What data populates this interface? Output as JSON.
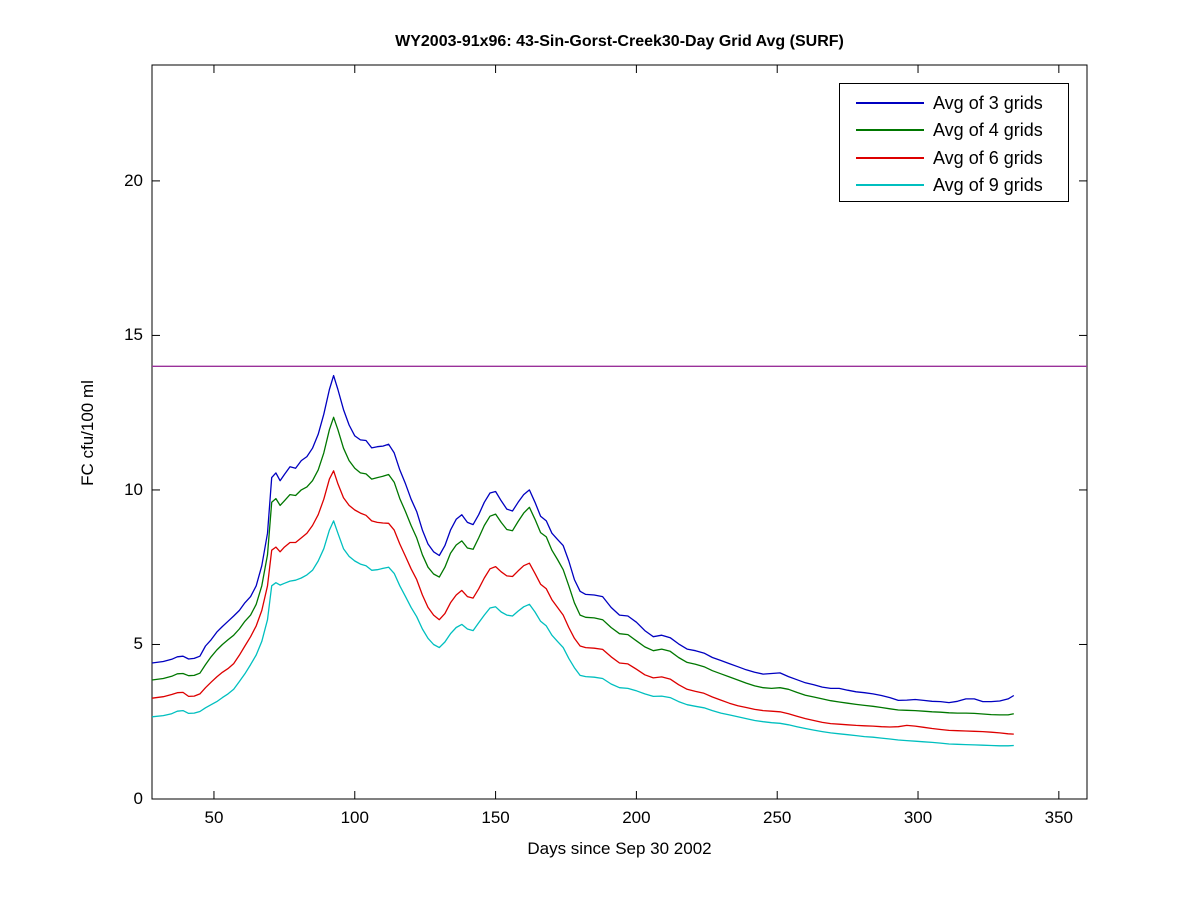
{
  "figure": {
    "title": "WY2003-91x96: 43-Sin-Gorst-Creek30-Day Grid Avg (SURF)",
    "xlabel": "Days since Sep 30 2002",
    "ylabel": "FC cfu/100 ml"
  },
  "chart_data": {
    "type": "line",
    "title": "WY2003-91x96: 43-Sin-Gorst-Creek30-Day Grid Avg (SURF)",
    "xlabel": "Days since Sep 30 2002",
    "ylabel": "FC cfu/100 ml",
    "xlim": [
      28,
      360
    ],
    "ylim": [
      0,
      23.75
    ],
    "xticks": [
      50,
      100,
      150,
      200,
      250,
      300,
      350
    ],
    "yticks": [
      0,
      5,
      10,
      15,
      20
    ],
    "grid": false,
    "legend_position": "top-right",
    "frame_color": "#000000",
    "reference_line": {
      "y": 14,
      "color": "#9A309A"
    },
    "x": [
      28,
      32,
      35,
      37,
      39,
      41,
      43,
      45,
      47,
      49,
      51,
      53,
      55,
      57,
      59,
      61,
      63,
      65,
      67,
      69,
      70.5,
      72,
      73.5,
      75,
      77,
      79,
      81,
      83,
      85,
      87,
      89,
      91,
      92.5,
      94,
      96,
      98,
      100,
      102,
      104,
      106,
      108,
      110,
      112,
      114,
      116,
      118,
      120,
      122,
      124,
      126,
      128,
      130,
      132,
      134,
      136,
      138,
      140,
      142,
      144,
      146,
      148,
      150,
      152,
      154,
      156,
      158,
      160,
      162,
      164,
      166,
      168,
      170,
      172,
      174,
      176,
      178,
      180,
      182,
      185,
      188,
      191,
      194,
      197,
      200,
      203,
      206,
      209,
      212,
      215,
      218,
      221,
      224,
      227,
      230,
      233,
      236,
      239,
      242,
      245,
      248,
      251,
      254,
      257,
      260,
      263,
      266,
      269,
      272,
      275,
      278,
      281,
      284,
      287,
      290,
      293,
      296,
      299,
      302,
      305,
      308,
      311,
      314,
      317,
      320,
      323,
      326,
      329,
      332,
      334
    ],
    "series": [
      {
        "name": "Avg of 3 grids",
        "color": "#0000C0",
        "values": [
          4.4,
          4.45,
          4.52,
          4.6,
          4.62,
          4.53,
          4.55,
          4.62,
          4.95,
          5.15,
          5.4,
          5.58,
          5.75,
          5.92,
          6.1,
          6.35,
          6.55,
          6.9,
          7.55,
          8.6,
          10.4,
          10.55,
          10.3,
          10.5,
          10.75,
          10.7,
          10.95,
          11.08,
          11.35,
          11.8,
          12.45,
          13.25,
          13.7,
          13.25,
          12.6,
          12.1,
          11.75,
          11.62,
          11.6,
          11.36,
          11.4,
          11.42,
          11.48,
          11.2,
          10.65,
          10.2,
          9.7,
          9.3,
          8.7,
          8.25,
          8.0,
          7.88,
          8.2,
          8.7,
          9.05,
          9.2,
          8.95,
          8.88,
          9.2,
          9.6,
          9.9,
          9.95,
          9.65,
          9.38,
          9.32,
          9.6,
          9.85,
          10.0,
          9.6,
          9.15,
          9.0,
          8.6,
          8.4,
          8.2,
          7.7,
          7.1,
          6.72,
          6.62,
          6.6,
          6.55,
          6.2,
          5.95,
          5.92,
          5.72,
          5.45,
          5.25,
          5.3,
          5.22,
          5.02,
          4.85,
          4.8,
          4.72,
          4.58,
          4.48,
          4.38,
          4.28,
          4.18,
          4.1,
          4.04,
          4.06,
          4.08,
          3.96,
          3.86,
          3.76,
          3.7,
          3.62,
          3.58,
          3.58,
          3.52,
          3.47,
          3.44,
          3.4,
          3.35,
          3.28,
          3.19,
          3.2,
          3.22,
          3.19,
          3.16,
          3.15,
          3.12,
          3.16,
          3.24,
          3.24,
          3.15,
          3.15,
          3.17,
          3.24,
          3.35
        ]
      },
      {
        "name": "Avg of 4 grids",
        "color": "#007700",
        "values": [
          3.85,
          3.9,
          3.97,
          4.05,
          4.06,
          3.99,
          4.0,
          4.07,
          4.35,
          4.6,
          4.82,
          5.0,
          5.15,
          5.3,
          5.5,
          5.75,
          5.95,
          6.3,
          6.9,
          7.9,
          9.6,
          9.72,
          9.5,
          9.65,
          9.85,
          9.82,
          10.0,
          10.1,
          10.3,
          10.65,
          11.2,
          11.95,
          12.35,
          11.95,
          11.35,
          10.95,
          10.7,
          10.55,
          10.52,
          10.35,
          10.4,
          10.44,
          10.5,
          10.25,
          9.72,
          9.3,
          8.85,
          8.45,
          7.9,
          7.5,
          7.28,
          7.18,
          7.5,
          7.95,
          8.22,
          8.35,
          8.12,
          8.08,
          8.45,
          8.85,
          9.15,
          9.22,
          8.95,
          8.72,
          8.68,
          8.98,
          9.25,
          9.44,
          9.05,
          8.62,
          8.48,
          8.05,
          7.75,
          7.42,
          6.9,
          6.35,
          5.95,
          5.88,
          5.86,
          5.8,
          5.55,
          5.35,
          5.32,
          5.12,
          4.92,
          4.8,
          4.85,
          4.78,
          4.58,
          4.42,
          4.36,
          4.28,
          4.15,
          4.05,
          3.95,
          3.85,
          3.75,
          3.66,
          3.6,
          3.58,
          3.6,
          3.55,
          3.45,
          3.36,
          3.3,
          3.24,
          3.18,
          3.14,
          3.1,
          3.06,
          3.03,
          3.0,
          2.96,
          2.92,
          2.88,
          2.87,
          2.86,
          2.84,
          2.82,
          2.81,
          2.79,
          2.78,
          2.78,
          2.77,
          2.75,
          2.73,
          2.72,
          2.72,
          2.76
        ]
      },
      {
        "name": "Avg of 6 grids",
        "color": "#DD0000",
        "values": [
          3.26,
          3.31,
          3.38,
          3.44,
          3.45,
          3.32,
          3.33,
          3.4,
          3.6,
          3.78,
          3.95,
          4.1,
          4.22,
          4.38,
          4.65,
          4.95,
          5.25,
          5.6,
          6.1,
          6.9,
          8.05,
          8.15,
          8.0,
          8.15,
          8.3,
          8.3,
          8.45,
          8.6,
          8.85,
          9.2,
          9.7,
          10.35,
          10.62,
          10.2,
          9.75,
          9.5,
          9.35,
          9.25,
          9.18,
          9.0,
          8.95,
          8.93,
          8.92,
          8.7,
          8.25,
          7.85,
          7.45,
          7.1,
          6.6,
          6.2,
          5.95,
          5.8,
          6.0,
          6.35,
          6.6,
          6.75,
          6.55,
          6.5,
          6.8,
          7.15,
          7.45,
          7.52,
          7.35,
          7.22,
          7.2,
          7.38,
          7.55,
          7.63,
          7.3,
          6.95,
          6.8,
          6.45,
          6.2,
          5.95,
          5.55,
          5.2,
          4.95,
          4.9,
          4.88,
          4.84,
          4.6,
          4.4,
          4.37,
          4.2,
          4.02,
          3.92,
          3.95,
          3.88,
          3.7,
          3.55,
          3.48,
          3.42,
          3.3,
          3.2,
          3.1,
          3.02,
          2.96,
          2.9,
          2.86,
          2.84,
          2.82,
          2.76,
          2.68,
          2.6,
          2.54,
          2.48,
          2.44,
          2.42,
          2.4,
          2.38,
          2.37,
          2.36,
          2.34,
          2.33,
          2.34,
          2.38,
          2.36,
          2.32,
          2.28,
          2.25,
          2.22,
          2.21,
          2.2,
          2.19,
          2.18,
          2.16,
          2.14,
          2.11,
          2.1
        ]
      },
      {
        "name": "Avg of 9 grids",
        "color": "#00BFBF",
        "values": [
          2.66,
          2.7,
          2.76,
          2.84,
          2.86,
          2.77,
          2.78,
          2.83,
          2.95,
          3.05,
          3.15,
          3.28,
          3.4,
          3.55,
          3.8,
          4.05,
          4.35,
          4.66,
          5.1,
          5.8,
          6.9,
          7.0,
          6.92,
          6.98,
          7.05,
          7.08,
          7.15,
          7.25,
          7.4,
          7.7,
          8.1,
          8.7,
          9.0,
          8.6,
          8.1,
          7.85,
          7.7,
          7.6,
          7.55,
          7.4,
          7.42,
          7.46,
          7.5,
          7.3,
          6.9,
          6.55,
          6.2,
          5.9,
          5.5,
          5.2,
          5.0,
          4.9,
          5.08,
          5.35,
          5.55,
          5.65,
          5.5,
          5.45,
          5.7,
          5.95,
          6.18,
          6.22,
          6.05,
          5.95,
          5.92,
          6.08,
          6.22,
          6.3,
          6.05,
          5.75,
          5.6,
          5.3,
          5.1,
          4.9,
          4.55,
          4.25,
          4.0,
          3.96,
          3.94,
          3.9,
          3.72,
          3.6,
          3.58,
          3.5,
          3.4,
          3.32,
          3.33,
          3.28,
          3.15,
          3.05,
          3.0,
          2.95,
          2.86,
          2.78,
          2.72,
          2.66,
          2.6,
          2.54,
          2.5,
          2.47,
          2.45,
          2.4,
          2.34,
          2.28,
          2.23,
          2.18,
          2.14,
          2.11,
          2.08,
          2.05,
          2.02,
          2.0,
          1.97,
          1.94,
          1.91,
          1.89,
          1.87,
          1.85,
          1.83,
          1.81,
          1.78,
          1.77,
          1.76,
          1.75,
          1.74,
          1.73,
          1.72,
          1.72,
          1.73
        ]
      }
    ]
  }
}
